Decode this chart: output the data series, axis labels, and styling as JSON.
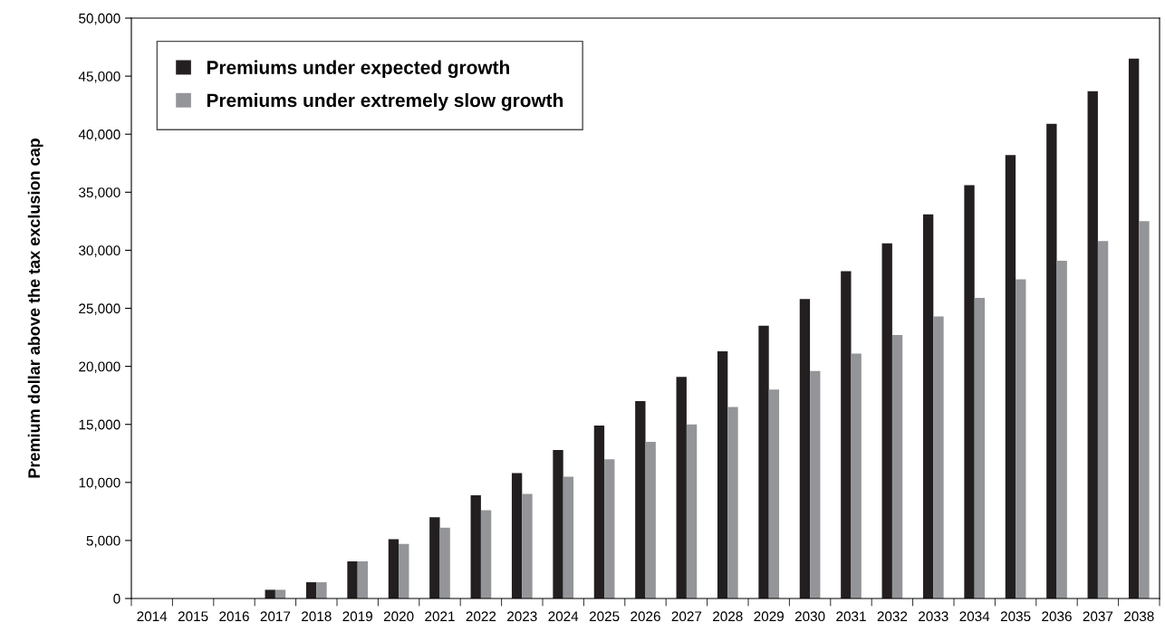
{
  "chart_data": {
    "type": "bar",
    "ylabel": "Premium dollar above the tax exclusion cap",
    "categories": [
      "2014",
      "2015",
      "2016",
      "2017",
      "2018",
      "2019",
      "2020",
      "2021",
      "2022",
      "2023",
      "2024",
      "2025",
      "2026",
      "2027",
      "2028",
      "2029",
      "2030",
      "2031",
      "2032",
      "2033",
      "2034",
      "2035",
      "2036",
      "2037",
      "2038"
    ],
    "series": [
      {
        "name": "Premiums under expected growth",
        "color": "#231f20",
        "values": [
          0,
          0,
          0,
          750,
          1400,
          3200,
          5100,
          7000,
          8900,
          10800,
          12800,
          14900,
          17000,
          19100,
          21300,
          23500,
          25800,
          28200,
          30600,
          33100,
          35600,
          38200,
          40900,
          43700,
          46500
        ]
      },
      {
        "name": "Premiums under extremely slow growth",
        "color": "#939598",
        "values": [
          0,
          0,
          0,
          750,
          1400,
          3200,
          4700,
          6100,
          7600,
          9000,
          10500,
          12000,
          13500,
          15000,
          16500,
          18000,
          19600,
          21100,
          22700,
          24300,
          25900,
          27500,
          29100,
          30800,
          32500
        ]
      }
    ],
    "ylim": [
      0,
      50000
    ],
    "yticks": [
      {
        "value": 0,
        "label": "0"
      },
      {
        "value": 5000,
        "label": "5,000"
      },
      {
        "value": 10000,
        "label": "10,000"
      },
      {
        "value": 15000,
        "label": "15,000"
      },
      {
        "value": 20000,
        "label": "20,000"
      },
      {
        "value": 25000,
        "label": "25,000"
      },
      {
        "value": 30000,
        "label": "30,000"
      },
      {
        "value": 35000,
        "label": "35,000"
      },
      {
        "value": 40000,
        "label": "40,000"
      },
      {
        "value": 45000,
        "label": "45,000"
      },
      {
        "value": 50000,
        "label": "50,000"
      }
    ],
    "grid": false,
    "legend": "top left"
  }
}
